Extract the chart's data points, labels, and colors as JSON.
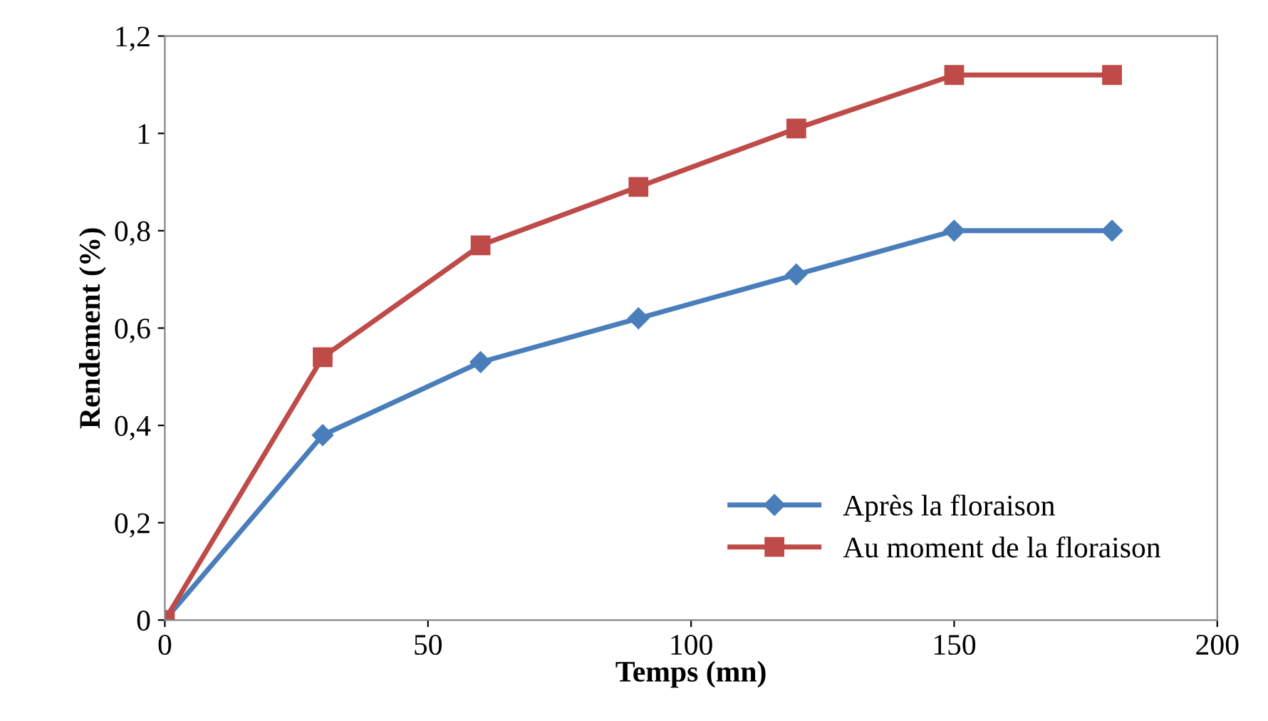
{
  "chart_data": {
    "type": "line",
    "xlabel": "Temps (mn)",
    "ylabel": "Rendement (%)",
    "x": [
      0,
      30,
      60,
      90,
      120,
      150,
      180
    ],
    "series": [
      {
        "name": "Après la floraison",
        "color": "#4a7ebb",
        "marker": "diamond",
        "values": [
          0,
          0.38,
          0.53,
          0.62,
          0.71,
          0.8,
          0.8
        ]
      },
      {
        "name": "Au moment de la floraison",
        "color": "#be4b48",
        "marker": "square",
        "values": [
          0,
          0.54,
          0.77,
          0.89,
          1.01,
          1.12,
          1.12
        ]
      }
    ],
    "xlim": [
      0,
      200
    ],
    "xticks": [
      0,
      50,
      100,
      150,
      200
    ],
    "ylim": [
      0,
      1.2
    ],
    "yticks": [
      0,
      {
        "value": 0.2,
        "label": "0,2"
      },
      {
        "value": 0.4,
        "label": "0,4"
      },
      {
        "value": 0.6,
        "label": "0,6"
      },
      {
        "value": 0.8,
        "label": "0,8"
      },
      1,
      {
        "value": 1.2,
        "label": "1,2"
      }
    ],
    "grid": false,
    "legend": "bottom right",
    "line_style": "solid"
  }
}
